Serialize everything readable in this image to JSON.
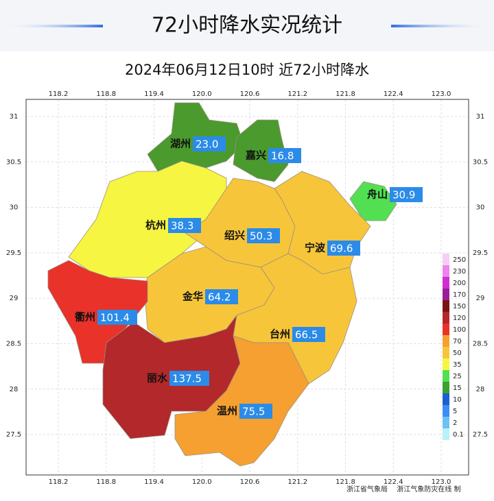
{
  "header": {
    "title": "72小时降水实况统计"
  },
  "map": {
    "subtitle": "2024年06月12日10时 近72小时降水",
    "lon_ticks": [
      118.2,
      118.8,
      119.4,
      {
        "value": 120,
        "label": "120.0"
      },
      120.6,
      121.2,
      121.8,
      122.4,
      {
        "value": 123,
        "label": "123.0"
      }
    ],
    "lat_ticks": [
      31,
      30.5,
      30,
      29.5,
      29,
      28.5,
      28,
      27.5
    ],
    "regions": {
      "names": [
        "湖州",
        "嘉兴",
        "舟山",
        "杭州",
        "绍兴",
        "宁波",
        "金华",
        "衢州",
        "台州",
        "丽水",
        "温州"
      ],
      "values": [
        23,
        16.8,
        30.9,
        38.3,
        50.3,
        69.6,
        64.2,
        101.4,
        66.5,
        137.5,
        75.5
      ],
      "value_labels": [
        "23.0",
        "16.8",
        "30.9",
        "38.3",
        "50.3",
        "69.6",
        "64.2",
        "101.4",
        "66.5",
        "137.5",
        "75.5"
      ],
      "colors": [
        "#4a9a2e",
        "#4a9a2e",
        "#52e052",
        "#f5f542",
        "#f7c53a",
        "#f7c53a",
        "#f7c53a",
        "#e8322a",
        "#f7c53a",
        "#b3282a",
        "#f5a030"
      ]
    },
    "legend": [
      {
        "value": 250,
        "color": "#f7cdf2"
      },
      {
        "value": 230,
        "color": "#ee82ee"
      },
      {
        "value": 200,
        "color": "#d02ed0"
      },
      {
        "value": 170,
        "color": "#9a1c9a"
      },
      {
        "value": 150,
        "color": "#7a1414"
      },
      {
        "value": 120,
        "color": "#b3282a"
      },
      {
        "value": 100,
        "color": "#e8322a"
      },
      {
        "value": 70,
        "color": "#f5a030"
      },
      {
        "value": 50,
        "color": "#f7c53a"
      },
      {
        "value": 35,
        "color": "#f5f542"
      },
      {
        "value": 25,
        "color": "#52e052"
      },
      {
        "value": 15,
        "color": "#3aa02e"
      },
      {
        "value": 10,
        "color": "#1e5fd0"
      },
      {
        "value": 5,
        "color": "#3c8ef0"
      },
      {
        "value": 2,
        "color": "#6ec0f5"
      },
      {
        "value": 0.1,
        "color": "#b8f2f8"
      }
    ],
    "credits": [
      "浙江省气象局",
      "浙江气象防灾在线 制"
    ]
  }
}
